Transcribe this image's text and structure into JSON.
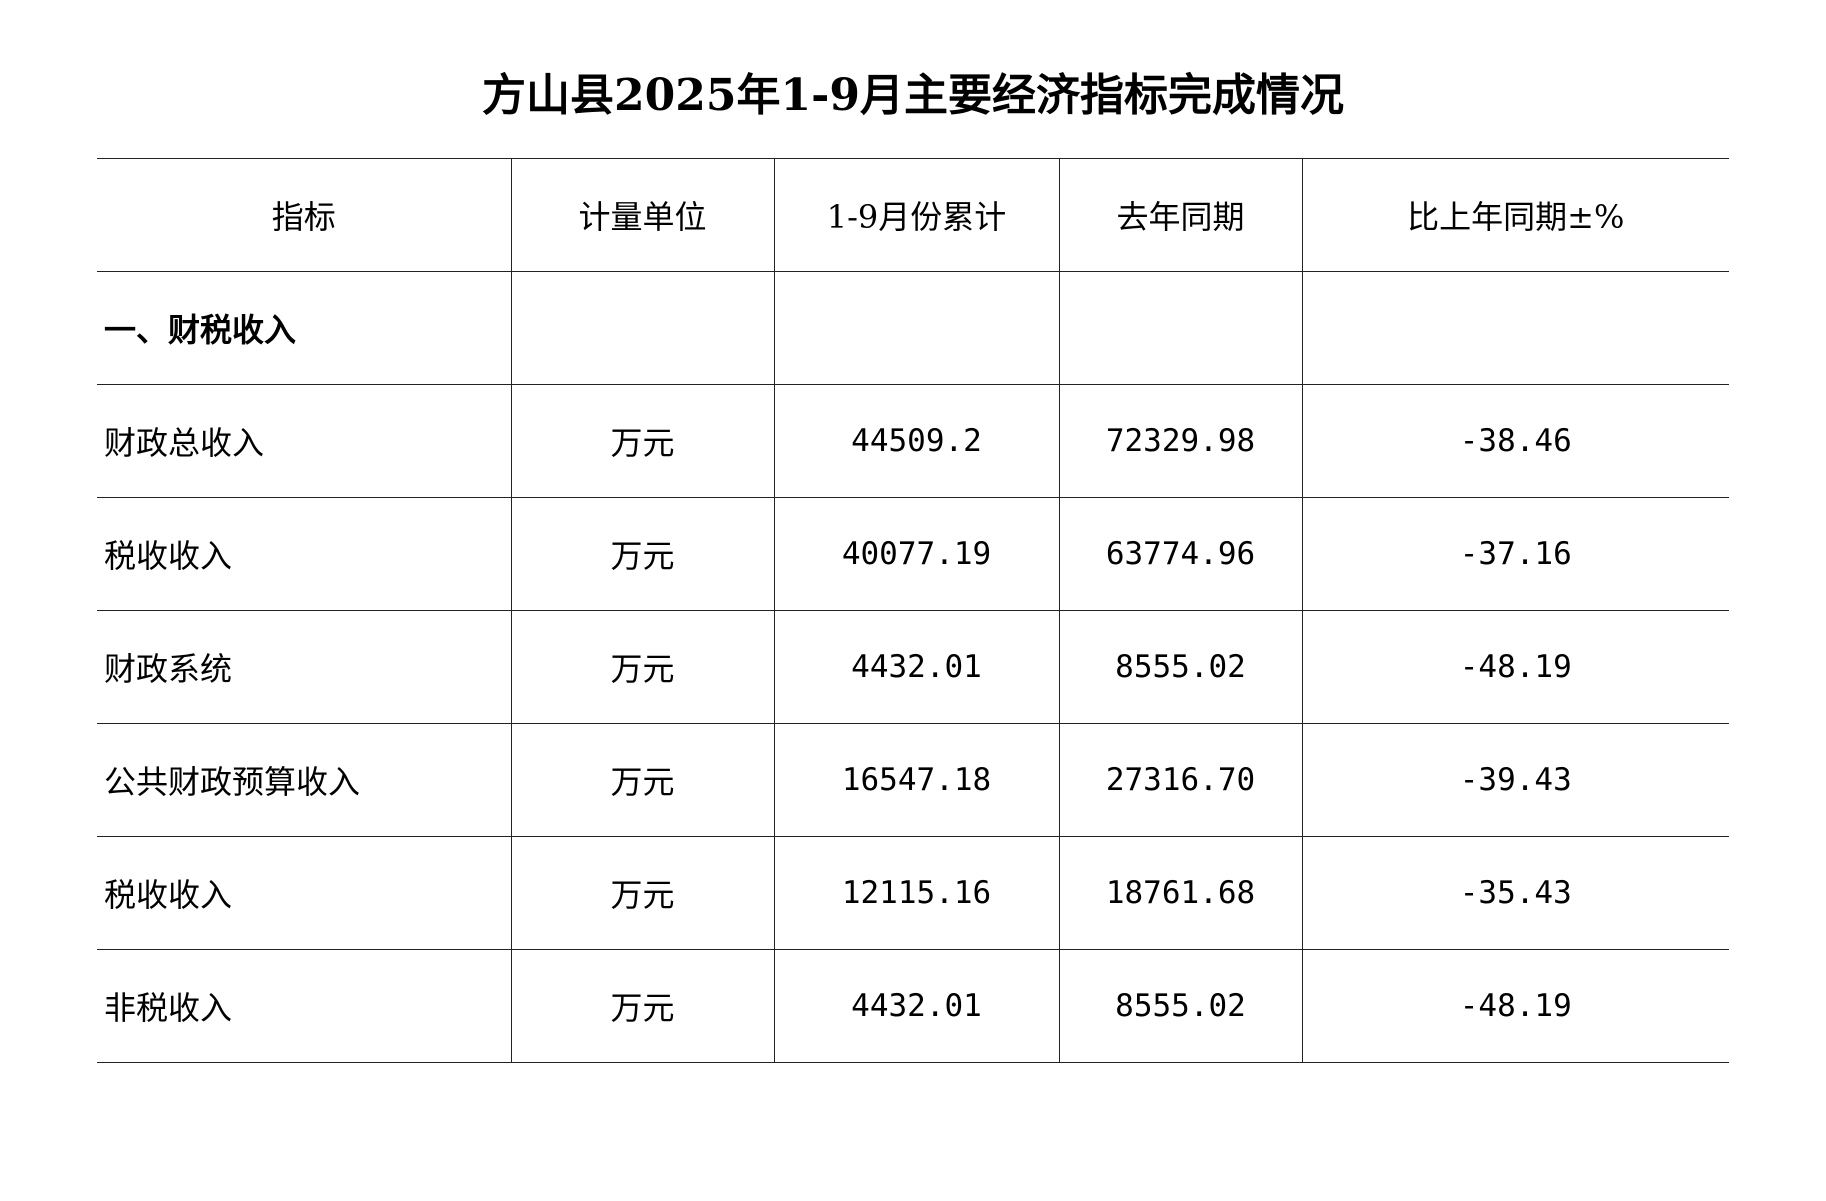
{
  "title": "方山县2025年1-9月主要经济指标完成情况",
  "table": {
    "headers": [
      "指标",
      "计量单位",
      "1-9月份累计",
      "去年同期",
      "比上年同期±%"
    ],
    "section": "一、财税收入",
    "rows": [
      {
        "name": "财政总收入",
        "unit": "万元",
        "cumulative": "44509.2",
        "last_year": "72329.98",
        "change": "-38.46"
      },
      {
        "name": "税收收入",
        "unit": "万元",
        "cumulative": "40077.19",
        "last_year": "63774.96",
        "change": "-37.16"
      },
      {
        "name": "财政系统",
        "unit": "万元",
        "cumulative": "4432.01",
        "last_year": "8555.02",
        "change": "-48.19"
      },
      {
        "name": "公共财政预算收入",
        "unit": "万元",
        "cumulative": "16547.18",
        "last_year": "27316.70",
        "change": "-39.43"
      },
      {
        "name": "税收收入",
        "unit": "万元",
        "cumulative": "12115.16",
        "last_year": "18761.68",
        "change": "-35.43"
      },
      {
        "name": "非税收入",
        "unit": "万元",
        "cumulative": "4432.01",
        "last_year": "8555.02",
        "change": "-48.19"
      }
    ]
  }
}
